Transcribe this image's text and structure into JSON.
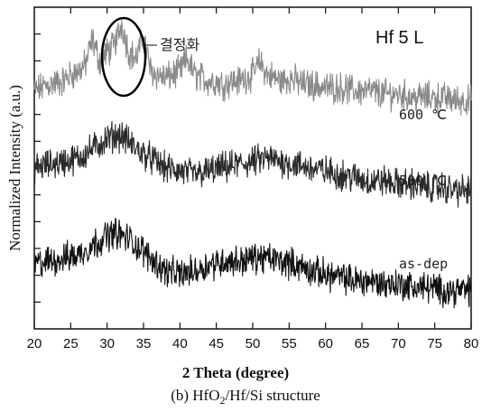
{
  "chart_data": {
    "type": "line",
    "title": "",
    "xlabel": "2 Theta (degree)",
    "ylabel": "Normalized Intensity (a.u.)",
    "xlim": [
      20,
      80
    ],
    "ylim": [
      0,
      1
    ],
    "x_ticks": [
      20,
      25,
      30,
      35,
      40,
      45,
      50,
      55,
      60,
      65,
      70,
      75,
      80
    ],
    "x_tick_labels": [
      "20",
      "25",
      "30",
      "35",
      "40",
      "45",
      "50",
      "55",
      "60",
      "65",
      "70",
      "75",
      "80"
    ],
    "y_tick_labels": [],
    "grid": false,
    "corner_label": "Hf 5 L",
    "annotation": "결정화",
    "caption_pre": "(b) HfO",
    "caption_sub": "2",
    "caption_post": "/Hf/Si structure",
    "series": [
      {
        "name": "600 ℃",
        "color": "#8a8a8a",
        "baseline": 0.7,
        "points": [
          [
            20,
            0.74
          ],
          [
            22,
            0.76
          ],
          [
            24,
            0.77
          ],
          [
            25,
            0.79
          ],
          [
            26,
            0.8
          ],
          [
            27,
            0.82
          ],
          [
            28,
            0.9
          ],
          [
            29,
            0.83
          ],
          [
            30,
            0.86
          ],
          [
            31,
            0.88
          ],
          [
            32,
            0.95
          ],
          [
            33,
            0.86
          ],
          [
            34,
            0.84
          ],
          [
            35,
            0.91
          ],
          [
            36,
            0.8
          ],
          [
            37,
            0.79
          ],
          [
            38,
            0.78
          ],
          [
            39,
            0.79
          ],
          [
            40,
            0.8
          ],
          [
            41,
            0.84
          ],
          [
            42,
            0.79
          ],
          [
            43,
            0.78
          ],
          [
            44,
            0.77
          ],
          [
            45,
            0.77
          ],
          [
            46,
            0.76
          ],
          [
            47,
            0.77
          ],
          [
            48,
            0.77
          ],
          [
            49,
            0.78
          ],
          [
            50,
            0.79
          ],
          [
            51,
            0.83
          ],
          [
            52,
            0.79
          ],
          [
            53,
            0.78
          ],
          [
            54,
            0.77
          ],
          [
            55,
            0.78
          ],
          [
            56,
            0.77
          ],
          [
            57,
            0.76
          ],
          [
            58,
            0.76
          ],
          [
            60,
            0.75
          ],
          [
            62,
            0.75
          ],
          [
            64,
            0.74
          ],
          [
            66,
            0.74
          ],
          [
            68,
            0.73
          ],
          [
            70,
            0.73
          ],
          [
            72,
            0.72
          ],
          [
            74,
            0.72
          ],
          [
            76,
            0.72
          ],
          [
            78,
            0.71
          ],
          [
            80,
            0.71
          ]
        ]
      },
      {
        "name": "500 ℃",
        "color": "#2a2a2a",
        "baseline": 0.43,
        "points": [
          [
            20,
            0.5
          ],
          [
            22,
            0.51
          ],
          [
            24,
            0.52
          ],
          [
            26,
            0.53
          ],
          [
            28,
            0.56
          ],
          [
            30,
            0.59
          ],
          [
            31,
            0.6
          ],
          [
            32,
            0.6
          ],
          [
            33,
            0.58
          ],
          [
            34,
            0.56
          ],
          [
            36,
            0.53
          ],
          [
            38,
            0.5
          ],
          [
            40,
            0.49
          ],
          [
            42,
            0.48
          ],
          [
            44,
            0.49
          ],
          [
            46,
            0.5
          ],
          [
            48,
            0.51
          ],
          [
            50,
            0.52
          ],
          [
            52,
            0.53
          ],
          [
            54,
            0.52
          ],
          [
            56,
            0.51
          ],
          [
            58,
            0.5
          ],
          [
            60,
            0.49
          ],
          [
            62,
            0.48
          ],
          [
            64,
            0.47
          ],
          [
            66,
            0.46
          ],
          [
            68,
            0.46
          ],
          [
            70,
            0.45
          ],
          [
            72,
            0.45
          ],
          [
            74,
            0.44
          ],
          [
            76,
            0.44
          ],
          [
            78,
            0.43
          ],
          [
            80,
            0.43
          ]
        ]
      },
      {
        "name": "as-dep",
        "color": "#111111",
        "baseline": 0.12,
        "points": [
          [
            20,
            0.2
          ],
          [
            22,
            0.21
          ],
          [
            24,
            0.22
          ],
          [
            26,
            0.23
          ],
          [
            28,
            0.26
          ],
          [
            30,
            0.29
          ],
          [
            31,
            0.3
          ],
          [
            32,
            0.29
          ],
          [
            33,
            0.28
          ],
          [
            34,
            0.26
          ],
          [
            36,
            0.22
          ],
          [
            38,
            0.18
          ],
          [
            40,
            0.17
          ],
          [
            42,
            0.18
          ],
          [
            44,
            0.2
          ],
          [
            46,
            0.21
          ],
          [
            48,
            0.21
          ],
          [
            50,
            0.22
          ],
          [
            52,
            0.22
          ],
          [
            54,
            0.21
          ],
          [
            56,
            0.2
          ],
          [
            58,
            0.18
          ],
          [
            60,
            0.17
          ],
          [
            62,
            0.16
          ],
          [
            64,
            0.15
          ],
          [
            66,
            0.15
          ],
          [
            68,
            0.14
          ],
          [
            70,
            0.14
          ],
          [
            72,
            0.13
          ],
          [
            74,
            0.13
          ],
          [
            76,
            0.12
          ],
          [
            78,
            0.12
          ],
          [
            80,
            0.12
          ]
        ]
      }
    ]
  }
}
